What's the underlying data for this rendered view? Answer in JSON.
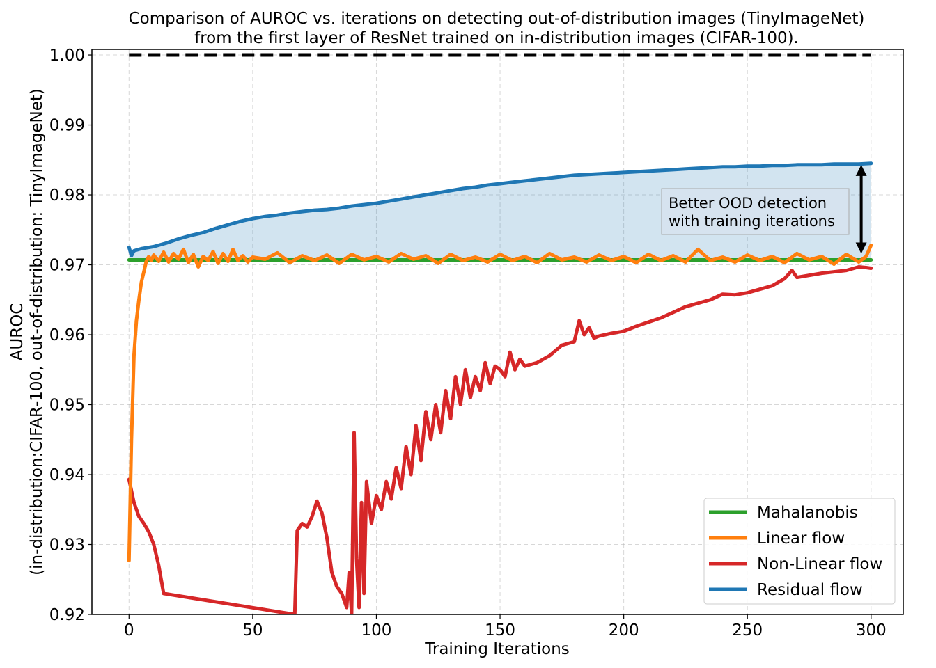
{
  "chart_data": {
    "type": "line",
    "title": "Comparison of AUROC vs. iterations on detecting out-of-distribution images (TinyImageNet)",
    "subtitle": "from the first layer of ResNet trained on in-distribution images (CIFAR-100).",
    "xlabel": "Training Iterations",
    "ylabel_line1": "AUROC",
    "ylabel_line2": "(in-distribution:CIFAR-100, out-of-distribution: TinyImageNet)",
    "xlim": [
      -15,
      313
    ],
    "ylim": [
      0.92,
      1.0008
    ],
    "x_ticks": [
      0,
      50,
      100,
      150,
      200,
      250,
      300
    ],
    "x_tick_labels": [
      "0",
      "50",
      "100",
      "150",
      "200",
      "250",
      "300"
    ],
    "y_ticks": [
      0.92,
      0.93,
      0.94,
      0.95,
      0.96,
      0.97,
      0.98,
      0.99,
      1.0
    ],
    "y_tick_labels": [
      "0.92",
      "0.93",
      "0.94",
      "0.95",
      "0.96",
      "0.97",
      "0.98",
      "0.99",
      "1.00"
    ],
    "grid": true,
    "legend_position": "bottom-right",
    "annotation": {
      "line1": "Better OOD detection",
      "line2": "with training iterations",
      "arrow_x": 296,
      "arrow_y_from": 0.9843,
      "arrow_y_to": 0.9716
    },
    "reference_line": {
      "y": 1.0,
      "x_from": 0,
      "x_to": 300,
      "style": "dashed",
      "color": "#000000"
    },
    "fill_between": {
      "upper": "Residual flow",
      "lower": "Mahalanobis",
      "color": "#1f77b4",
      "opacity": 0.2
    },
    "series": [
      {
        "name": "Mahalanobis",
        "color": "#2ca02c",
        "x": [
          0,
          300
        ],
        "y": [
          0.9707,
          0.9707
        ]
      },
      {
        "name": "Linear flow",
        "color": "#ff7f0e",
        "x": [
          0,
          1,
          2,
          3,
          4,
          5,
          6,
          7,
          8,
          9,
          10,
          12,
          14,
          16,
          18,
          20,
          22,
          24,
          26,
          28,
          30,
          32,
          34,
          36,
          38,
          40,
          42,
          44,
          46,
          48,
          50,
          55,
          60,
          65,
          70,
          75,
          80,
          85,
          90,
          95,
          100,
          105,
          110,
          115,
          120,
          125,
          130,
          135,
          140,
          145,
          150,
          155,
          160,
          165,
          170,
          175,
          180,
          185,
          190,
          195,
          200,
          205,
          210,
          215,
          220,
          225,
          230,
          235,
          240,
          245,
          250,
          255,
          260,
          265,
          270,
          275,
          280,
          285,
          290,
          295,
          298,
          300
        ],
        "y": [
          0.9277,
          0.945,
          0.957,
          0.962,
          0.965,
          0.9675,
          0.969,
          0.9705,
          0.9712,
          0.9706,
          0.9714,
          0.9705,
          0.9718,
          0.9704,
          0.9716,
          0.9708,
          0.9722,
          0.9703,
          0.9715,
          0.9697,
          0.9712,
          0.9706,
          0.9719,
          0.9702,
          0.9716,
          0.9705,
          0.9722,
          0.9706,
          0.9713,
          0.9704,
          0.9711,
          0.9708,
          0.9717,
          0.9703,
          0.9713,
          0.9706,
          0.9714,
          0.9702,
          0.9715,
          0.9707,
          0.9712,
          0.9704,
          0.9716,
          0.9708,
          0.9713,
          0.9702,
          0.9715,
          0.9706,
          0.9711,
          0.9704,
          0.9715,
          0.9706,
          0.9712,
          0.9703,
          0.9716,
          0.9707,
          0.9711,
          0.9704,
          0.9714,
          0.9706,
          0.9712,
          0.9703,
          0.9715,
          0.9706,
          0.9713,
          0.9704,
          0.9722,
          0.9706,
          0.9711,
          0.9704,
          0.9714,
          0.9706,
          0.9712,
          0.9703,
          0.9716,
          0.9707,
          0.9712,
          0.9701,
          0.9715,
          0.9704,
          0.9712,
          0.9728
        ]
      },
      {
        "name": "Non-Linear flow",
        "color": "#d62728",
        "x": [
          0,
          2,
          4,
          6,
          8,
          10,
          12,
          14,
          67,
          68,
          70,
          72,
          74,
          76,
          78,
          80,
          82,
          84,
          86,
          88,
          89,
          90,
          91,
          92,
          93,
          94,
          95,
          96,
          98,
          100,
          102,
          104,
          106,
          108,
          110,
          112,
          114,
          116,
          118,
          120,
          122,
          124,
          126,
          128,
          130,
          132,
          134,
          136,
          138,
          140,
          142,
          144,
          146,
          148,
          150,
          152,
          154,
          156,
          158,
          160,
          165,
          170,
          175,
          180,
          182,
          184,
          186,
          188,
          190,
          195,
          200,
          205,
          210,
          215,
          220,
          225,
          230,
          235,
          240,
          245,
          250,
          255,
          260,
          265,
          268,
          270,
          275,
          280,
          285,
          290,
          295,
          298,
          300
        ],
        "y": [
          0.9393,
          0.936,
          0.934,
          0.933,
          0.9318,
          0.93,
          0.927,
          0.923,
          0.92,
          0.932,
          0.933,
          0.9325,
          0.934,
          0.9362,
          0.9345,
          0.931,
          0.926,
          0.924,
          0.923,
          0.921,
          0.926,
          0.92,
          0.946,
          0.928,
          0.921,
          0.936,
          0.923,
          0.939,
          0.933,
          0.937,
          0.935,
          0.939,
          0.9365,
          0.941,
          0.938,
          0.944,
          0.94,
          0.947,
          0.942,
          0.949,
          0.945,
          0.95,
          0.946,
          0.952,
          0.948,
          0.954,
          0.95,
          0.955,
          0.951,
          0.954,
          0.952,
          0.956,
          0.953,
          0.9555,
          0.955,
          0.954,
          0.9575,
          0.955,
          0.9565,
          0.9555,
          0.956,
          0.957,
          0.9585,
          0.959,
          0.962,
          0.96,
          0.961,
          0.9595,
          0.9598,
          0.9602,
          0.9605,
          0.9612,
          0.9618,
          0.9624,
          0.9632,
          0.964,
          0.9645,
          0.965,
          0.9658,
          0.9657,
          0.966,
          0.9665,
          0.967,
          0.968,
          0.9692,
          0.9682,
          0.9685,
          0.9688,
          0.969,
          0.9692,
          0.9697,
          0.9696,
          0.9695
        ]
      },
      {
        "name": "Residual flow",
        "color": "#1f77b4",
        "x": [
          0,
          1,
          2,
          5,
          10,
          15,
          20,
          25,
          30,
          35,
          40,
          45,
          50,
          55,
          60,
          65,
          70,
          75,
          80,
          85,
          90,
          95,
          100,
          105,
          110,
          115,
          120,
          125,
          130,
          135,
          140,
          145,
          150,
          155,
          160,
          165,
          170,
          175,
          180,
          185,
          190,
          195,
          200,
          205,
          210,
          215,
          220,
          225,
          230,
          235,
          240,
          245,
          250,
          255,
          260,
          265,
          270,
          275,
          280,
          285,
          290,
          295,
          300
        ],
        "y": [
          0.9725,
          0.9713,
          0.972,
          0.9723,
          0.9726,
          0.9731,
          0.9737,
          0.9742,
          0.9746,
          0.9752,
          0.9757,
          0.9762,
          0.9766,
          0.9769,
          0.9771,
          0.9774,
          0.9776,
          0.9778,
          0.9779,
          0.9781,
          0.9784,
          0.9786,
          0.9788,
          0.9791,
          0.9794,
          0.9797,
          0.98,
          0.9803,
          0.9806,
          0.9809,
          0.9811,
          0.9814,
          0.9816,
          0.9818,
          0.982,
          0.9822,
          0.9824,
          0.9826,
          0.9828,
          0.9829,
          0.983,
          0.9831,
          0.9832,
          0.9833,
          0.9834,
          0.9835,
          0.9836,
          0.9837,
          0.9838,
          0.9839,
          0.984,
          0.984,
          0.9841,
          0.9841,
          0.9842,
          0.9842,
          0.9843,
          0.9843,
          0.9843,
          0.9844,
          0.9844,
          0.9844,
          0.9845
        ]
      }
    ]
  }
}
